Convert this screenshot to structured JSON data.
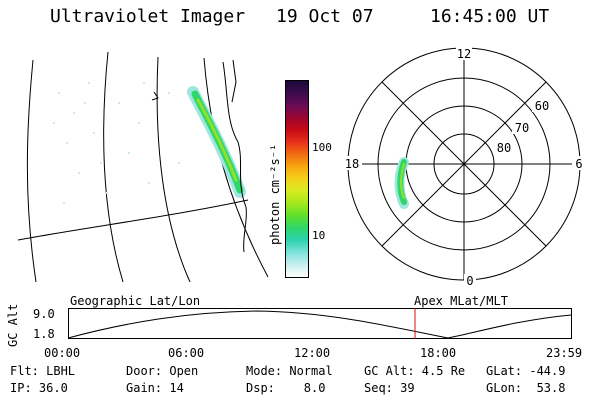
{
  "header": {
    "instrument": "Ultraviolet Imager",
    "date": "19 Oct 07",
    "time": "16:45:00 UT"
  },
  "colorbar": {
    "unit_label": "photon cm⁻²s⁻¹",
    "ticks": [
      "100",
      "10"
    ],
    "colors": [
      "#1a0a3a",
      "#3d0b4d",
      "#6a0b55",
      "#9a0630",
      "#c80a14",
      "#e8311a",
      "#f06e12",
      "#f7a70e",
      "#f4d21a",
      "#d6ec20",
      "#a2e81c",
      "#5fe02c",
      "#2fd66a",
      "#2dd2b0",
      "#7ee2dc",
      "#c9eeee",
      "#ffffff"
    ]
  },
  "polar": {
    "mlt_labels": {
      "top": "12",
      "left": "18",
      "right": "6",
      "bottom": "0"
    },
    "lat_labels": [
      "60",
      "70",
      "80"
    ]
  },
  "timeline": {
    "left_label": "Geographic Lat/Lon",
    "right_label": "Apex MLat/MLT",
    "axis_title": "GC Alt",
    "y_labels": [
      "9.0",
      "1.8"
    ],
    "x_labels": [
      "00:00",
      "06:00",
      "12:00",
      "18:00",
      "23:59"
    ],
    "marker_color": "#d01010"
  },
  "info": {
    "row1": [
      {
        "label": "Flt: LBHL"
      },
      {
        "label": "Door: Open"
      },
      {
        "label": "Mode: Normal"
      },
      {
        "label": "GC Alt: 4.5 Re"
      },
      {
        "label": "GLat: -44.9"
      }
    ],
    "row2": [
      {
        "label": "IP: 36.0"
      },
      {
        "label": "Gain: 14"
      },
      {
        "label": "Dsp:    8.0"
      },
      {
        "label": "Seq: 39"
      },
      {
        "label": "GLon:  53.8"
      }
    ]
  }
}
